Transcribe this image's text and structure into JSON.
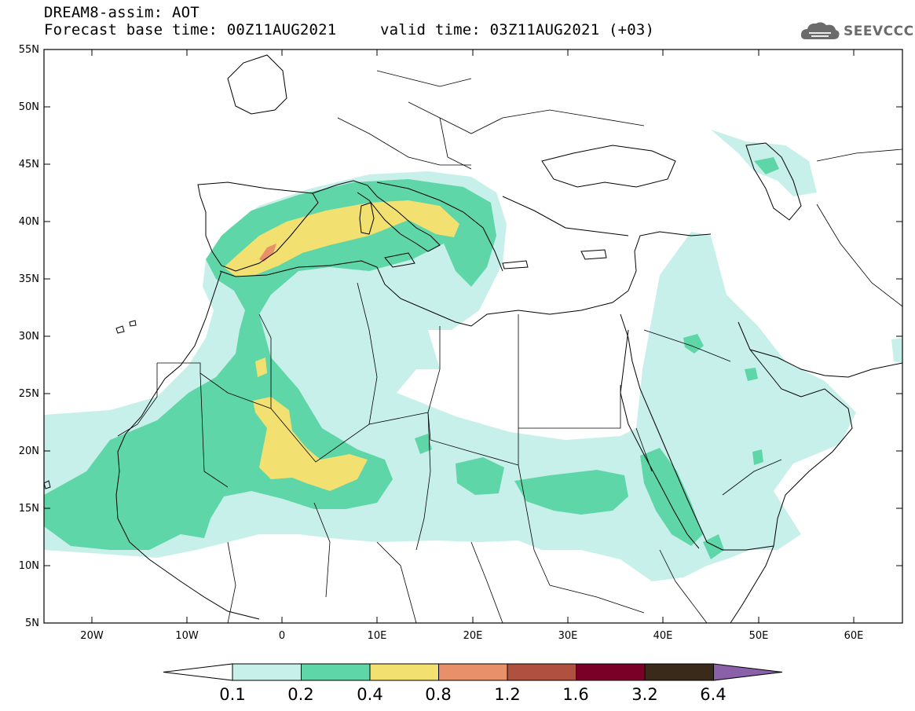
{
  "header": {
    "model_field": "DREAM8-assim: AOT",
    "base_time": "Forecast base time: 00Z11AUG2021",
    "valid_time": "valid time: 03Z11AUG2021 (+03)"
  },
  "logo": {
    "text": "SEEVCCC",
    "icon": "cloud-icon"
  },
  "map": {
    "lat_labels": [
      "55N",
      "50N",
      "45N",
      "40N",
      "35N",
      "30N",
      "25N",
      "20N",
      "15N",
      "10N",
      "5N"
    ],
    "lon_labels": [
      "20W",
      "10W",
      "0",
      "10E",
      "20E",
      "30E",
      "40E",
      "50E",
      "60E"
    ],
    "extent": {
      "lon_min": -25,
      "lon_max": 65,
      "lat_min": 5,
      "lat_max": 55
    }
  },
  "colorbar": {
    "labels": [
      "0.1",
      "0.2",
      "0.4",
      "0.8",
      "1.2",
      "1.6",
      "3.2",
      "6.4"
    ],
    "colors": [
      "#ffffff",
      "#c8f0ea",
      "#5ed6a8",
      "#f2e070",
      "#e8906a",
      "#b05040",
      "#7a0028",
      "#3a2a1a",
      "#8a60a8"
    ]
  },
  "colors": {
    "level_0_1": "#c8f0ea",
    "level_0_2": "#5ed6a8",
    "level_0_4": "#f2e070",
    "level_0_8": "#e8906a"
  }
}
